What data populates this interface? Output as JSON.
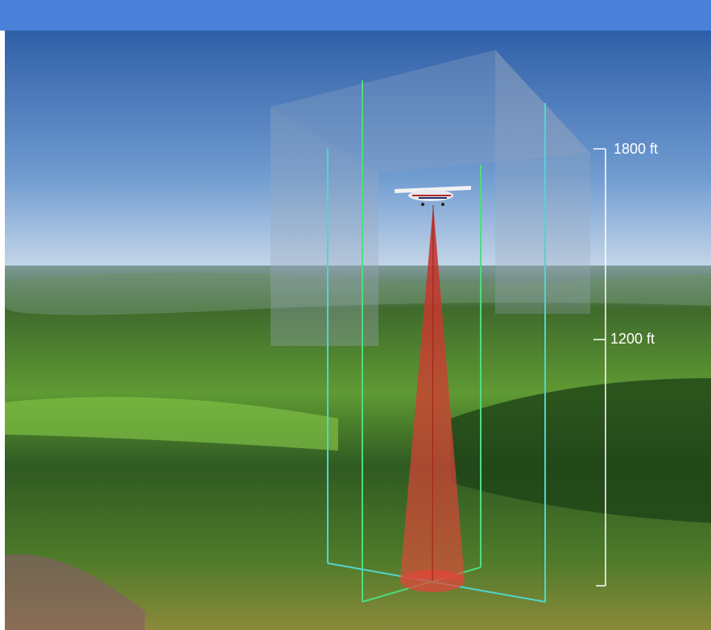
{
  "altitude_labels": [
    "1800 ft",
    "1200 ft"
  ]
}
